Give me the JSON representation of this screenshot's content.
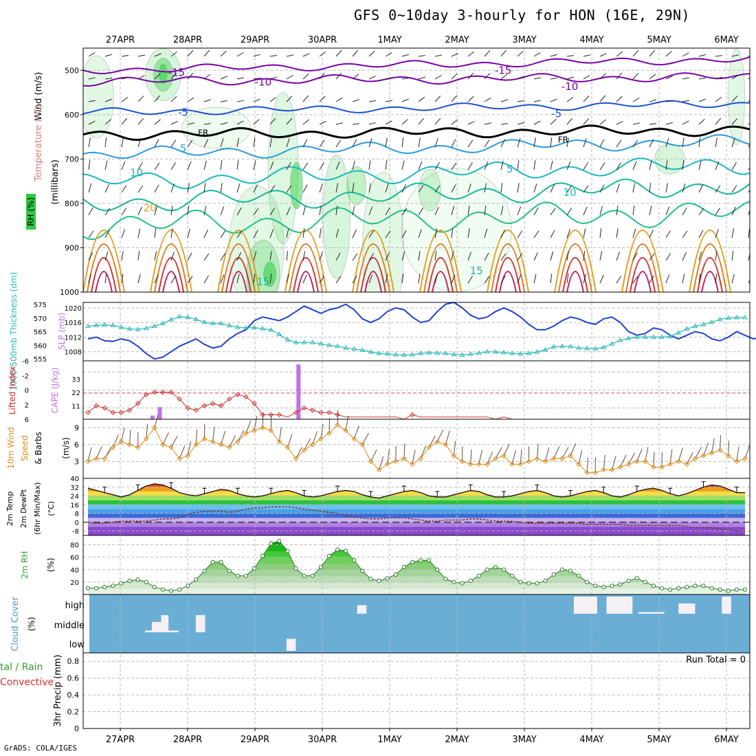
{
  "title": "GFS 0~10day 3-hourly for HON (16E, 29N)",
  "credit": "GrADS: COLA/IGES",
  "date_labels": [
    "27APR",
    "28APR",
    "29APR",
    "30APR",
    "1MAY",
    "2MAY",
    "3MAY",
    "4MAY",
    "5MAY",
    "6MAY"
  ],
  "colors": {
    "temperature_cold": "#7a00a8",
    "temperature_mid": "#1a4fd6",
    "temperature_warm": "#e0a020",
    "rh_fill": "#2ecc40",
    "slp_line": "#1f3fd0",
    "thickness_line": "#2ab7b7",
    "lifted_index": "#d03030",
    "cape_bar": "#c070f0",
    "wind_speed": "#e08a1a",
    "dewpoint": "#7a3b2e",
    "cloud_bg": "#6aaed6"
  },
  "chart_data": [
    {
      "panel": "upper-air",
      "type": "heatmap",
      "ylabel_parts": [
        "Wind (m/s)",
        "Temperature (°C)",
        "RH (%)",
        "(millibars)"
      ],
      "yticks": [
        500,
        600,
        700,
        800,
        900,
        1000
      ],
      "ylim": [
        1000,
        450
      ],
      "contour_labels": [
        {
          "label": "-15",
          "x": 0.14,
          "p": 505
        },
        {
          "label": "-15",
          "x": 0.63,
          "p": 500
        },
        {
          "label": "-10",
          "x": 0.27,
          "p": 527
        },
        {
          "label": "-10",
          "x": 0.73,
          "p": 537
        },
        {
          "label": "-5",
          "x": 0.15,
          "p": 595
        },
        {
          "label": "-5",
          "x": 0.71,
          "p": 598
        },
        {
          "label": "FR",
          "x": 0.18,
          "p": 640
        },
        {
          "label": "FR",
          "x": 0.72,
          "p": 655
        },
        {
          "label": "5",
          "x": 0.15,
          "p": 676
        },
        {
          "label": "5",
          "x": 0.64,
          "p": 723
        },
        {
          "label": "10",
          "x": 0.08,
          "p": 731
        },
        {
          "label": "10",
          "x": 0.73,
          "p": 775
        },
        {
          "label": "20",
          "x": 0.1,
          "p": 810
        },
        {
          "label": "15",
          "x": 0.27,
          "p": 977
        },
        {
          "label": "15",
          "x": 0.59,
          "p": 952
        }
      ]
    },
    {
      "panel": "thickness-slp",
      "type": "line",
      "ylabel_left": "1000-500mb Thickness (dm)",
      "ylabel_right": "SLP (mb)",
      "thickness_ticks": [
        555,
        560,
        565,
        570,
        575
      ],
      "slp_ticks": [
        1008,
        1012,
        1016,
        1020
      ],
      "series": [
        {
          "name": "SLP (mb)",
          "values": [
            1011.5,
            1012,
            1011,
            1010.8,
            1011.5,
            1011,
            1009.5,
            1007.5,
            1006,
            1006.5,
            1008,
            1009.5,
            1010.5,
            1011.5,
            1010,
            1009,
            1009.5,
            1011.5,
            1013,
            1014,
            1016.5,
            1017.5,
            1017,
            1016.5,
            1017.5,
            1019,
            1020.5,
            1019.5,
            1018.5,
            1019.5,
            1020,
            1021,
            1019.5,
            1017,
            1016,
            1017,
            1019,
            1020,
            1019.5,
            1017.5,
            1016,
            1016.5,
            1019,
            1021,
            1021.5,
            1020,
            1018,
            1017,
            1017.5,
            1019,
            1020,
            1019,
            1017.5,
            1015.5,
            1014,
            1014,
            1015,
            1016.5,
            1017.5,
            1017,
            1016,
            1015.5,
            1017,
            1017.5,
            1016,
            1013.5,
            1012.5,
            1013,
            1014.5,
            1014,
            1012.5,
            1011.5,
            1012.5,
            1013.5,
            1013,
            1011.5,
            1011,
            1012,
            1013.5,
            1012.5,
            1011.5,
            1012
          ]
        },
        {
          "name": "1000-500mb Thickness (dm)",
          "values": [
            567,
            567.3,
            567.5,
            567.3,
            566.6,
            566,
            565.8,
            566.2,
            567,
            568,
            569.4,
            570.5,
            570.3,
            569.5,
            568.5,
            568,
            568,
            567.2,
            566.6,
            566.4,
            566.5,
            566.1,
            565.6,
            564,
            562,
            561,
            561,
            561,
            560.5,
            560,
            559.6,
            559,
            558.6,
            558.2,
            557.5,
            557,
            556.8,
            556.5,
            556.4,
            556.5,
            557,
            557.2,
            557.1,
            557,
            556.6,
            556.4,
            556.7,
            557.1,
            557.6,
            557.5,
            557.3,
            557,
            556.8,
            557,
            557.5,
            558.3,
            559.4,
            559.6,
            559.5,
            559,
            558.8,
            558.7,
            559.2,
            560.5,
            561.8,
            562.5,
            563,
            563,
            563,
            563,
            563.2,
            564.6,
            566,
            567,
            567.6,
            568.5,
            569.5,
            570,
            570.2,
            570.2
          ]
        }
      ]
    },
    {
      "panel": "stability",
      "type": "bar",
      "ylabel_left": "Lifted Index",
      "ylabel_right": "CAPE (J/kg)",
      "li_ticks": [
        "6",
        "2",
        "0",
        "-2",
        "-6"
      ],
      "cape_ticks": [
        11,
        22,
        33
      ],
      "cape_bars": [
        {
          "x": 0.104,
          "value": 3
        },
        {
          "x": 0.115,
          "value": 10
        },
        {
          "x": 0.323,
          "value": 45
        }
      ],
      "series": [
        {
          "name": "Lifted Index",
          "values": [
            5,
            3.5,
            4,
            5,
            5,
            4.5,
            3,
            1,
            0.5,
            0.5,
            0.5,
            2,
            4,
            4.5,
            3.5,
            3,
            3.5,
            2,
            1,
            1.5,
            3,
            5.5,
            5.5,
            5.5,
            6,
            5,
            4,
            4.5,
            5,
            5,
            5.5,
            6,
            6,
            6,
            6,
            6,
            6,
            6,
            6.5,
            5.5,
            6,
            6,
            6,
            6,
            6,
            6,
            6,
            6,
            6,
            6.5,
            6,
            6.5,
            6.5,
            6.5,
            6.5,
            6.5,
            6.5,
            6.5,
            6.5,
            6.5,
            6.5,
            6.5,
            6.5,
            6.5,
            6.5,
            6.5,
            6.5,
            6.5,
            6.5,
            6.5,
            6.5,
            6.5,
            6.5,
            6.5,
            6.5,
            6.5,
            6.5,
            6.5,
            6.5,
            6.5
          ]
        }
      ]
    },
    {
      "panel": "wind10m",
      "type": "line",
      "ylabel_left": "10m Wind Speed & Barbs",
      "ylabel_unit": "(m/s)",
      "yticks": [
        3,
        6,
        9
      ],
      "ylim": [
        0,
        10.5
      ],
      "series": [
        {
          "name": "10m Wind Speed",
          "values": [
            3,
            3.5,
            3.5,
            5.5,
            6.5,
            6,
            5.5,
            7,
            9,
            6,
            5.5,
            3.5,
            4,
            6,
            7,
            6.5,
            6,
            5.5,
            6.5,
            8,
            8.5,
            9,
            8.5,
            6.5,
            5.5,
            3.5,
            5,
            6,
            7,
            8,
            9.5,
            8.5,
            7,
            6,
            3,
            1.5,
            2.5,
            3,
            3.5,
            2.5,
            3.5,
            5.5,
            6.5,
            6,
            4,
            3,
            2.5,
            2.5,
            2.5,
            3.5,
            4,
            2.5,
            2.5,
            3,
            3.5,
            3,
            3.5,
            3.5,
            4,
            2.5,
            1,
            1,
            1.5,
            1.5,
            2,
            2.5,
            3,
            3,
            2,
            2,
            2.5,
            3,
            2.5,
            3.5,
            4,
            4.5,
            5,
            4,
            3,
            3.5
          ]
        }
      ]
    },
    {
      "panel": "temperature2m",
      "type": "area",
      "ylabel_parts": [
        "2m Temp",
        "2m DewPt",
        "(6hr Min/Max)",
        "(°C)"
      ],
      "yticks": [
        -8,
        0,
        8,
        16,
        24,
        32,
        40
      ],
      "ylim": [
        -12,
        40
      ],
      "series": [
        {
          "name": "2m Temp",
          "values": [
            31,
            29,
            27,
            25,
            23,
            25,
            29,
            33,
            35,
            34,
            31,
            27,
            25,
            24,
            26,
            28,
            30,
            29,
            26,
            24,
            23,
            24,
            26,
            28,
            29,
            27,
            24,
            23,
            24,
            26,
            28,
            29,
            28,
            25,
            23,
            22,
            24,
            26,
            28,
            29,
            27,
            24,
            23,
            23,
            25,
            27,
            29,
            28,
            25,
            23,
            23,
            24,
            26,
            28,
            29,
            27,
            24,
            23,
            24,
            26,
            28,
            29,
            27,
            24,
            23,
            25,
            28,
            30,
            31,
            29,
            26,
            24,
            26,
            29,
            32,
            34,
            33,
            30,
            27,
            27
          ]
        },
        {
          "name": "2m DewPt",
          "values": [
            0,
            -1,
            -1,
            0,
            1,
            1,
            1,
            1,
            2,
            3,
            3,
            4,
            7,
            9,
            10,
            10,
            10,
            9,
            10,
            12,
            13,
            13,
            14,
            14,
            14,
            13,
            12,
            11,
            10,
            9,
            8,
            6,
            5,
            4,
            3,
            3,
            4,
            4,
            4,
            3,
            2,
            1,
            1,
            2,
            2,
            2,
            3,
            3,
            2,
            1,
            1,
            1,
            0,
            -1,
            -1,
            -1,
            -1,
            -1,
            -1,
            -1,
            -2,
            -2,
            -2,
            -2,
            -2,
            -3,
            -3,
            -3,
            -3,
            -3,
            -3,
            -3,
            -4,
            -5,
            -5,
            -5,
            -6,
            -7,
            -8,
            -8
          ]
        }
      ]
    },
    {
      "panel": "rh2m",
      "type": "area",
      "ylabel_left": "2m RH",
      "ylabel_unit": "(%)",
      "yticks": [
        20,
        40,
        60,
        80
      ],
      "ylim": [
        0,
        95
      ],
      "series": [
        {
          "name": "2m RH",
          "values": [
            10,
            10,
            12,
            14,
            18,
            22,
            24,
            20,
            12,
            8,
            6,
            8,
            14,
            24,
            38,
            52,
            52,
            38,
            30,
            30,
            42,
            62,
            82,
            86,
            70,
            42,
            30,
            30,
            44,
            62,
            72,
            70,
            55,
            38,
            25,
            22,
            26,
            32,
            44,
            52,
            55,
            55,
            40,
            25,
            20,
            18,
            22,
            30,
            40,
            44,
            40,
            30,
            20,
            18,
            18,
            22,
            32,
            40,
            38,
            30,
            20,
            14,
            12,
            14,
            16,
            22,
            26,
            20,
            14,
            10,
            8,
            10,
            12,
            14,
            14,
            10,
            8,
            6,
            8,
            8
          ]
        }
      ]
    },
    {
      "panel": "cloud",
      "type": "bar",
      "ylabel_left": "Cloud Cover",
      "ylabel_unit": "(%)",
      "level_labels": [
        "high",
        "middle",
        "low"
      ],
      "series": [
        {
          "name": "high",
          "blocks": [
            {
              "x0": 0.411,
              "x1": 0.425,
              "value": 50
            },
            {
              "x0": 0.736,
              "x1": 0.771,
              "value": 100
            },
            {
              "x0": 0.785,
              "x1": 0.824,
              "value": 100
            },
            {
              "x0": 0.833,
              "x1": 0.872,
              "value": 10
            },
            {
              "x0": 0.893,
              "x1": 0.918,
              "value": 60
            },
            {
              "x0": 0.958,
              "x1": 0.972,
              "value": 100
            }
          ]
        },
        {
          "name": "middle",
          "blocks": [
            {
              "x0": 0.093,
              "x1": 0.143,
              "value": 10
            },
            {
              "x0": 0.103,
              "x1": 0.117,
              "value": 60
            },
            {
              "x0": 0.117,
              "x1": 0.128,
              "value": 100
            },
            {
              "x0": 0.169,
              "x1": 0.183,
              "value": 100
            }
          ]
        },
        {
          "name": "low",
          "blocks": [
            {
              "x0": 0.305,
              "x1": 0.319,
              "value": 70
            }
          ]
        }
      ]
    },
    {
      "panel": "precip",
      "type": "bar",
      "ylabel_left_a": "tal / Rain",
      "ylabel_left_b": "Convective",
      "ylabel_mid": "3hr Precip (mm)",
      "yticks": [
        "0",
        "0.2",
        "0.4",
        "0.6",
        "0.8"
      ],
      "ylim": [
        0,
        0.9
      ],
      "annotation": "Run Total = 0",
      "values": []
    }
  ]
}
